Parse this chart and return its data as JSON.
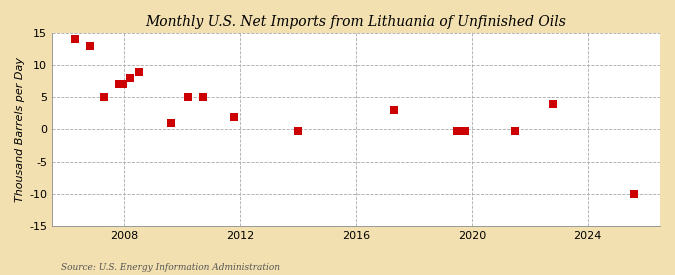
{
  "title": "Monthly U.S. Net Imports from Lithuania of Unfinished Oils",
  "ylabel": "Thousand Barrels per Day",
  "source": "Source: U.S. Energy Information Administration",
  "figure_bg_color": "#f2e0b0",
  "plot_bg_color": "#ffffff",
  "marker_color": "#cc0000",
  "marker_size": 28,
  "xlim": [
    2005.5,
    2026.5
  ],
  "ylim": [
    -15,
    15
  ],
  "yticks": [
    -15,
    -10,
    -5,
    0,
    5,
    10,
    15
  ],
  "xticks": [
    2008,
    2012,
    2016,
    2020,
    2024
  ],
  "grid_color": "#aaaaaa",
  "data_points": [
    [
      2006.3,
      14.0
    ],
    [
      2006.8,
      13.0
    ],
    [
      2007.3,
      5.0
    ],
    [
      2007.8,
      7.0
    ],
    [
      2007.95,
      7.0
    ],
    [
      2008.2,
      8.0
    ],
    [
      2008.5,
      9.0
    ],
    [
      2009.6,
      1.0
    ],
    [
      2010.2,
      5.0
    ],
    [
      2010.7,
      5.0
    ],
    [
      2011.8,
      2.0
    ],
    [
      2014.0,
      -0.3
    ],
    [
      2017.3,
      3.0
    ],
    [
      2019.5,
      -0.3
    ],
    [
      2019.75,
      -0.3
    ],
    [
      2021.5,
      -0.3
    ],
    [
      2022.8,
      4.0
    ],
    [
      2025.6,
      -10.0
    ]
  ]
}
